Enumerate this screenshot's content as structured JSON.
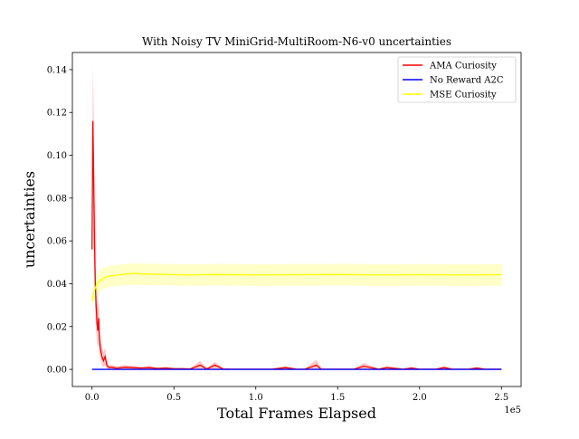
{
  "chart_data": {
    "type": "line",
    "title": "With Noisy TV MiniGrid-MultiRoom-N6-v0 uncertainties",
    "xlabel": "Total Frames Elapsed",
    "ylabel": "uncertainties",
    "x_offset_label": "1e5",
    "xlim": [
      -12000,
      262000
    ],
    "ylim": [
      -0.008,
      0.148
    ],
    "x_ticks": [
      0,
      0.5,
      1.0,
      1.5,
      2.0,
      2.5
    ],
    "x_tick_labels": [
      "0.0",
      "0.5",
      "1.0",
      "1.5",
      "2.0",
      "2.5"
    ],
    "y_ticks": [
      0.0,
      0.02,
      0.04,
      0.06,
      0.08,
      0.1,
      0.12,
      0.14
    ],
    "y_tick_labels": [
      "0.00",
      "0.02",
      "0.04",
      "0.06",
      "0.08",
      "0.10",
      "0.12",
      "0.14"
    ],
    "grid": false,
    "legend_position": "top-right",
    "series": [
      {
        "name": "AMA Curiosity",
        "color": "#ff0000",
        "band_color": "#ff0000",
        "x": [
          0,
          500,
          1000,
          1500,
          2000,
          2500,
          3000,
          3500,
          4000,
          4500,
          5000,
          5500,
          6000,
          7000,
          8000,
          9000,
          10000,
          12000,
          15000,
          20000,
          25000,
          30000,
          35000,
          40000,
          45000,
          50000,
          55000,
          60000,
          66000,
          70000,
          75000,
          80000,
          85000,
          90000,
          100000,
          110000,
          118000,
          125000,
          130000,
          137000,
          140000,
          150000,
          160000,
          166000,
          175000,
          180000,
          190000,
          195000,
          200000,
          210000,
          215000,
          220000,
          230000,
          235000,
          240000,
          250000
        ],
        "y": [
          0.056,
          0.116,
          0.09,
          0.06,
          0.04,
          0.03,
          0.022,
          0.018,
          0.024,
          0.015,
          0.01,
          0.008,
          0.006,
          0.004,
          0.006,
          0.002,
          0.001,
          0.001,
          0.0005,
          0.001,
          0.0008,
          0.0006,
          0.0008,
          0.0004,
          0.0006,
          0.0003,
          0.0003,
          0.0002,
          0.002,
          0.0002,
          0.002,
          0.0002,
          0.0001,
          0.0001,
          0.0001,
          0.0001,
          0.0008,
          0.0001,
          0.0001,
          0.002,
          0.0001,
          0.0001,
          0.0001,
          0.0015,
          0.0001,
          0.0008,
          0.0001,
          0.0006,
          0.0001,
          0.0001,
          0.0008,
          0.0001,
          0.0001,
          0.0006,
          0.0001,
          0.0001
        ],
        "y_lower": [
          0.05,
          0.09,
          0.06,
          0.04,
          0.025,
          0.018,
          0.013,
          0.01,
          0.012,
          0.008,
          0.005,
          0.004,
          0.002,
          0.001,
          0.002,
          0.0005,
          0.0,
          0.0,
          0.0,
          0.0,
          0.0,
          0.0,
          0.0,
          0.0,
          0.0,
          0.0,
          0.0,
          0.0,
          0.0,
          0.0,
          0.0,
          0.0,
          0.0,
          0.0,
          0.0,
          0.0,
          0.0,
          0.0,
          0.0,
          0.0,
          0.0,
          0.0,
          0.0,
          0.0,
          0.0,
          0.0,
          0.0,
          0.0,
          0.0,
          0.0,
          0.0,
          0.0,
          0.0,
          0.0,
          0.0,
          0.0
        ],
        "y_upper": [
          0.062,
          0.142,
          0.12,
          0.08,
          0.056,
          0.04,
          0.033,
          0.028,
          0.032,
          0.022,
          0.016,
          0.013,
          0.01,
          0.008,
          0.01,
          0.004,
          0.002,
          0.002,
          0.0015,
          0.002,
          0.0016,
          0.0012,
          0.0016,
          0.0009,
          0.0012,
          0.0007,
          0.0007,
          0.0005,
          0.004,
          0.0005,
          0.0035,
          0.0005,
          0.0003,
          0.0003,
          0.0003,
          0.0003,
          0.0016,
          0.0003,
          0.0003,
          0.0045,
          0.0003,
          0.0003,
          0.0003,
          0.003,
          0.0003,
          0.0016,
          0.0003,
          0.0012,
          0.0003,
          0.0003,
          0.0016,
          0.0003,
          0.0003,
          0.0012,
          0.0003,
          0.0003
        ]
      },
      {
        "name": "No Reward A2C",
        "color": "#0000ff",
        "band_color": "#0000ff",
        "x": [
          0,
          50000,
          100000,
          150000,
          200000,
          250000
        ],
        "y": [
          0.0,
          0.0,
          0.0,
          0.0,
          0.0,
          0.0
        ],
        "y_lower": [
          0.0,
          0.0,
          0.0,
          0.0,
          0.0,
          0.0
        ],
        "y_upper": [
          0.0,
          0.0,
          0.0,
          0.0,
          0.0,
          0.0
        ]
      },
      {
        "name": "MSE Curiosity",
        "color": "#ffff00",
        "band_color": "#ffff00",
        "x": [
          0,
          1000,
          2000,
          3000,
          4000,
          6000,
          8000,
          10000,
          15000,
          20000,
          25000,
          30000,
          40000,
          50000,
          60000,
          75000,
          100000,
          125000,
          150000,
          175000,
          200000,
          225000,
          250000
        ],
        "y": [
          0.032,
          0.036,
          0.038,
          0.04,
          0.041,
          0.042,
          0.043,
          0.0435,
          0.044,
          0.0445,
          0.0448,
          0.0446,
          0.0444,
          0.0442,
          0.0441,
          0.0443,
          0.0441,
          0.0442,
          0.0443,
          0.0441,
          0.0442,
          0.0441,
          0.0442
        ],
        "y_lower": [
          0.029,
          0.032,
          0.034,
          0.035,
          0.036,
          0.037,
          0.038,
          0.0385,
          0.039,
          0.0393,
          0.0395,
          0.0394,
          0.0393,
          0.0392,
          0.0391,
          0.0392,
          0.039,
          0.0391,
          0.0392,
          0.039,
          0.0391,
          0.039,
          0.0391
        ],
        "y_upper": [
          0.035,
          0.04,
          0.042,
          0.045,
          0.046,
          0.047,
          0.0478,
          0.0483,
          0.0487,
          0.0492,
          0.0495,
          0.0494,
          0.0493,
          0.0492,
          0.0491,
          0.0493,
          0.0491,
          0.0492,
          0.0493,
          0.0491,
          0.0492,
          0.0491,
          0.0492
        ]
      }
    ]
  }
}
